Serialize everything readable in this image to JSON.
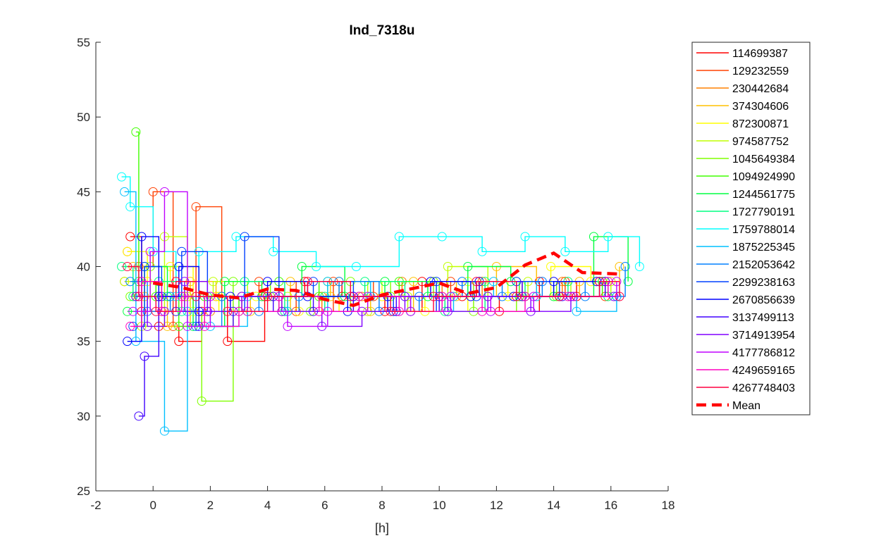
{
  "chart_data": {
    "type": "scatter",
    "title": "Ind_7318u",
    "xlabel": "[h]",
    "ylabel": "",
    "xlim": [
      -2,
      18
    ],
    "ylim": [
      25,
      55
    ],
    "xticks": [
      -2,
      0,
      2,
      4,
      6,
      8,
      10,
      12,
      14,
      16,
      18
    ],
    "xtick_labels": [
      "-2",
      "0",
      "2",
      "4",
      "6",
      "8",
      "10",
      "12",
      "14",
      "16",
      "18"
    ],
    "yticks": [
      25,
      30,
      35,
      40,
      45,
      50,
      55
    ],
    "ytick_labels": [
      "25",
      "30",
      "35",
      "40",
      "45",
      "50",
      "55"
    ],
    "grid": false,
    "legend_position": "outside-right",
    "series": [
      {
        "name": "114699387",
        "color": "#ff0000",
        "x": [
          -0.8,
          -0.4,
          0.2,
          0.9,
          1.7,
          2.6,
          3.9,
          5.3,
          6.6,
          8.1,
          9.4,
          10.8,
          12.1,
          13.5,
          14.8,
          16.2
        ],
        "y": [
          42,
          37,
          36,
          35,
          37,
          35,
          38,
          39,
          38,
          37,
          39,
          38,
          37,
          39,
          38,
          38
        ]
      },
      {
        "name": "129232559",
        "color": "#ff4000",
        "x": [
          -0.9,
          -0.5,
          0.0,
          0.7,
          1.5,
          2.4,
          3.7,
          5.0,
          6.3,
          7.7,
          9.0,
          10.4,
          11.7,
          13.0,
          14.4,
          15.8
        ],
        "y": [
          41,
          40,
          45,
          36,
          44,
          38,
          39,
          37,
          39,
          38,
          37,
          39,
          38,
          38,
          39,
          38
        ]
      },
      {
        "name": "230442684",
        "color": "#ff8000",
        "x": [
          -1.0,
          -0.6,
          0.3,
          1.1,
          2.0,
          3.1,
          4.5,
          5.9,
          7.3,
          8.7,
          10.1,
          11.5,
          12.9,
          14.3,
          15.7
        ],
        "y": [
          39,
          38,
          37,
          38,
          37,
          38,
          37,
          38,
          38,
          39,
          38,
          39,
          38,
          39,
          39
        ]
      },
      {
        "name": "374304606",
        "color": "#ffc000",
        "x": [
          -0.7,
          -0.3,
          0.5,
          1.3,
          2.2,
          3.4,
          4.8,
          6.2,
          7.6,
          9.1,
          10.6,
          12.0,
          13.4,
          14.9,
          16.3
        ],
        "y": [
          40,
          38,
          36,
          39,
          38,
          37,
          39,
          38,
          37,
          39,
          38,
          40,
          38,
          39,
          40
        ]
      },
      {
        "name": "872300871",
        "color": "#ffff00",
        "x": [
          -0.9,
          -0.2,
          0.6,
          1.4,
          2.3,
          3.6,
          5.1,
          6.5,
          8.0,
          9.5,
          11.0,
          12.4,
          13.9,
          15.3
        ],
        "y": [
          41,
          39,
          40,
          37,
          38,
          38,
          37,
          39,
          38,
          37,
          39,
          38,
          40,
          39
        ]
      },
      {
        "name": "974587752",
        "color": "#c0ff00",
        "x": [
          -1.0,
          -0.4,
          0.4,
          1.2,
          2.1,
          3.3,
          4.7,
          6.1,
          7.5,
          8.9,
          10.3,
          11.7,
          13.1,
          14.6,
          16.0
        ],
        "y": [
          39,
          36,
          42,
          38,
          39,
          37,
          38,
          39,
          37,
          38,
          40,
          38,
          39,
          38,
          39
        ]
      },
      {
        "name": "1045649384",
        "color": "#80ff00",
        "x": [
          -0.8,
          -0.1,
          0.8,
          1.7,
          2.8,
          4.1,
          5.5,
          6.9,
          8.3,
          9.8,
          11.2,
          12.7,
          14.1,
          15.6
        ],
        "y": [
          38,
          40,
          37,
          31,
          39,
          38,
          37,
          39,
          38,
          39,
          37,
          39,
          38,
          39
        ]
      },
      {
        "name": "1094924990",
        "color": "#40ff00",
        "x": [
          -0.6,
          -0.5,
          0.1,
          0.9,
          1.8,
          3.0,
          4.4,
          5.8,
          7.2,
          8.6,
          10.0,
          11.4,
          12.8,
          14.2,
          15.7
        ],
        "y": [
          49,
          39,
          38,
          36,
          38,
          37,
          39,
          38,
          38,
          39,
          38,
          39,
          38,
          38,
          39
        ]
      },
      {
        "name": "1244561775",
        "color": "#00ff40",
        "x": [
          -0.9,
          -0.3,
          0.5,
          1.4,
          2.5,
          3.8,
          5.2,
          6.7,
          8.1,
          9.6,
          11.0,
          12.5,
          14.0,
          15.4,
          16.6
        ],
        "y": [
          37,
          40,
          38,
          36,
          39,
          38,
          40,
          38,
          39,
          38,
          40,
          39,
          38,
          42,
          39
        ]
      },
      {
        "name": "1727790191",
        "color": "#00ff80",
        "x": [
          -1.1,
          -0.7,
          0.2,
          1.0,
          1.9,
          3.2,
          4.6,
          6.0,
          7.4,
          8.8,
          10.2,
          11.6,
          13.0,
          14.5,
          15.9
        ],
        "y": [
          40,
          38,
          39,
          37,
          38,
          39,
          37,
          38,
          39,
          38,
          37,
          39,
          38,
          39,
          38
        ]
      },
      {
        "name": "1759788014",
        "color": "#00ffff",
        "x": [
          -1.1,
          -0.8,
          0.0,
          0.8,
          1.6,
          2.9,
          4.2,
          5.7,
          7.1,
          8.6,
          10.1,
          11.5,
          13.0,
          14.4,
          15.9,
          17.0
        ],
        "y": [
          46,
          44,
          41,
          38,
          41,
          42,
          41,
          40,
          40,
          42,
          42,
          41,
          42,
          41,
          42,
          40
        ]
      },
      {
        "name": "1875225345",
        "color": "#00c0ff",
        "x": [
          -1.0,
          -0.6,
          0.4,
          1.2,
          2.0,
          3.3,
          4.7,
          6.1,
          7.6,
          9.0,
          10.5,
          11.9,
          13.4,
          14.8,
          16.2
        ],
        "y": [
          45,
          35,
          29,
          37,
          36,
          38,
          37,
          39,
          38,
          37,
          38,
          39,
          38,
          37,
          38
        ]
      },
      {
        "name": "2152053642",
        "color": "#0080ff",
        "x": [
          -0.8,
          -0.2,
          0.6,
          1.5,
          2.4,
          3.7,
          5.1,
          6.5,
          7.9,
          9.3,
          10.8,
          12.2,
          13.6,
          15.1,
          16.5
        ],
        "y": [
          39,
          37,
          38,
          36,
          38,
          37,
          38,
          39,
          37,
          38,
          39,
          38,
          39,
          38,
          40
        ]
      },
      {
        "name": "2299238163",
        "color": "#0040ff",
        "x": [
          -0.7,
          -0.3,
          0.3,
          1.0,
          1.9,
          3.2,
          4.4,
          5.6,
          7.0,
          8.4,
          9.9,
          11.3,
          12.7,
          14.2,
          15.6
        ],
        "y": [
          36,
          40,
          38,
          41,
          37,
          42,
          38,
          39,
          38,
          37,
          39,
          38,
          39,
          38,
          39
        ]
      },
      {
        "name": "2670856639",
        "color": "#0000ff",
        "x": [
          -0.9,
          -0.4,
          0.2,
          0.9,
          1.6,
          2.7,
          4.0,
          5.4,
          6.8,
          8.2,
          9.7,
          11.1,
          12.6,
          14.0,
          15.5
        ],
        "y": [
          35,
          42,
          38,
          40,
          37,
          38,
          39,
          38,
          37,
          38,
          39,
          38,
          38,
          39,
          39
        ]
      },
      {
        "name": "3137499113",
        "color": "#4000ff",
        "x": [
          -0.5,
          -0.3,
          0.2,
          0.8,
          1.6,
          2.8,
          4.2,
          5.6,
          7.0,
          8.5,
          10.0,
          11.4,
          12.9,
          14.3,
          15.8
        ],
        "y": [
          30,
          34,
          38,
          37,
          36,
          37,
          38,
          37,
          38,
          37,
          38,
          39,
          38,
          38,
          39
        ]
      },
      {
        "name": "3714913954",
        "color": "#8000ff",
        "x": [
          -0.6,
          -0.2,
          0.4,
          1.1,
          1.9,
          3.1,
          4.5,
          5.9,
          7.3,
          8.8,
          10.3,
          11.7,
          13.2,
          14.6,
          16.1
        ],
        "y": [
          38,
          36,
          37,
          39,
          37,
          38,
          37,
          36,
          37,
          38,
          37,
          38,
          37,
          38,
          38
        ]
      },
      {
        "name": "4177786812",
        "color": "#c000ff",
        "x": [
          -0.7,
          -0.1,
          0.4,
          1.2,
          2.0,
          3.3,
          4.7,
          6.1,
          7.5,
          9.0,
          10.4,
          11.8,
          13.3,
          14.7,
          16.2
        ],
        "y": [
          37,
          41,
          45,
          36,
          38,
          37,
          36,
          37,
          38,
          37,
          38,
          37,
          38,
          38,
          39
        ]
      },
      {
        "name": "4249659165",
        "color": "#ff00c0",
        "x": [
          -0.8,
          -0.4,
          0.3,
          1.0,
          1.8,
          3.0,
          4.4,
          5.8,
          7.2,
          8.6,
          10.1,
          11.5,
          13.0,
          14.5,
          15.9
        ],
        "y": [
          36,
          39,
          37,
          38,
          36,
          37,
          38,
          37,
          38,
          37,
          38,
          37,
          38,
          38,
          39
        ]
      },
      {
        "name": "4267748403",
        "color": "#ff0040",
        "x": [
          -0.9,
          -0.5,
          0.1,
          0.8,
          1.5,
          2.6,
          4.0,
          5.4,
          6.9,
          8.3,
          9.8,
          11.3,
          12.7,
          14.2,
          15.6,
          16.3
        ],
        "y": [
          40,
          38,
          37,
          39,
          38,
          37,
          38,
          39,
          38,
          37,
          38,
          39,
          38,
          38,
          39,
          38
        ]
      }
    ],
    "mean": {
      "name": "Mean",
      "color": "#ff0000",
      "x": [
        0.0,
        1.0,
        2.0,
        3.0,
        4.0,
        5.0,
        6.0,
        7.0,
        8.0,
        9.0,
        10.0,
        11.0,
        12.0,
        13.0,
        14.0,
        15.0,
        16.3
      ],
      "y": [
        38.9,
        38.6,
        38.1,
        37.9,
        38.5,
        38.4,
        37.8,
        37.4,
        38.1,
        38.5,
        38.9,
        38.2,
        38.6,
        40.1,
        40.9,
        39.6,
        39.5
      ]
    }
  }
}
